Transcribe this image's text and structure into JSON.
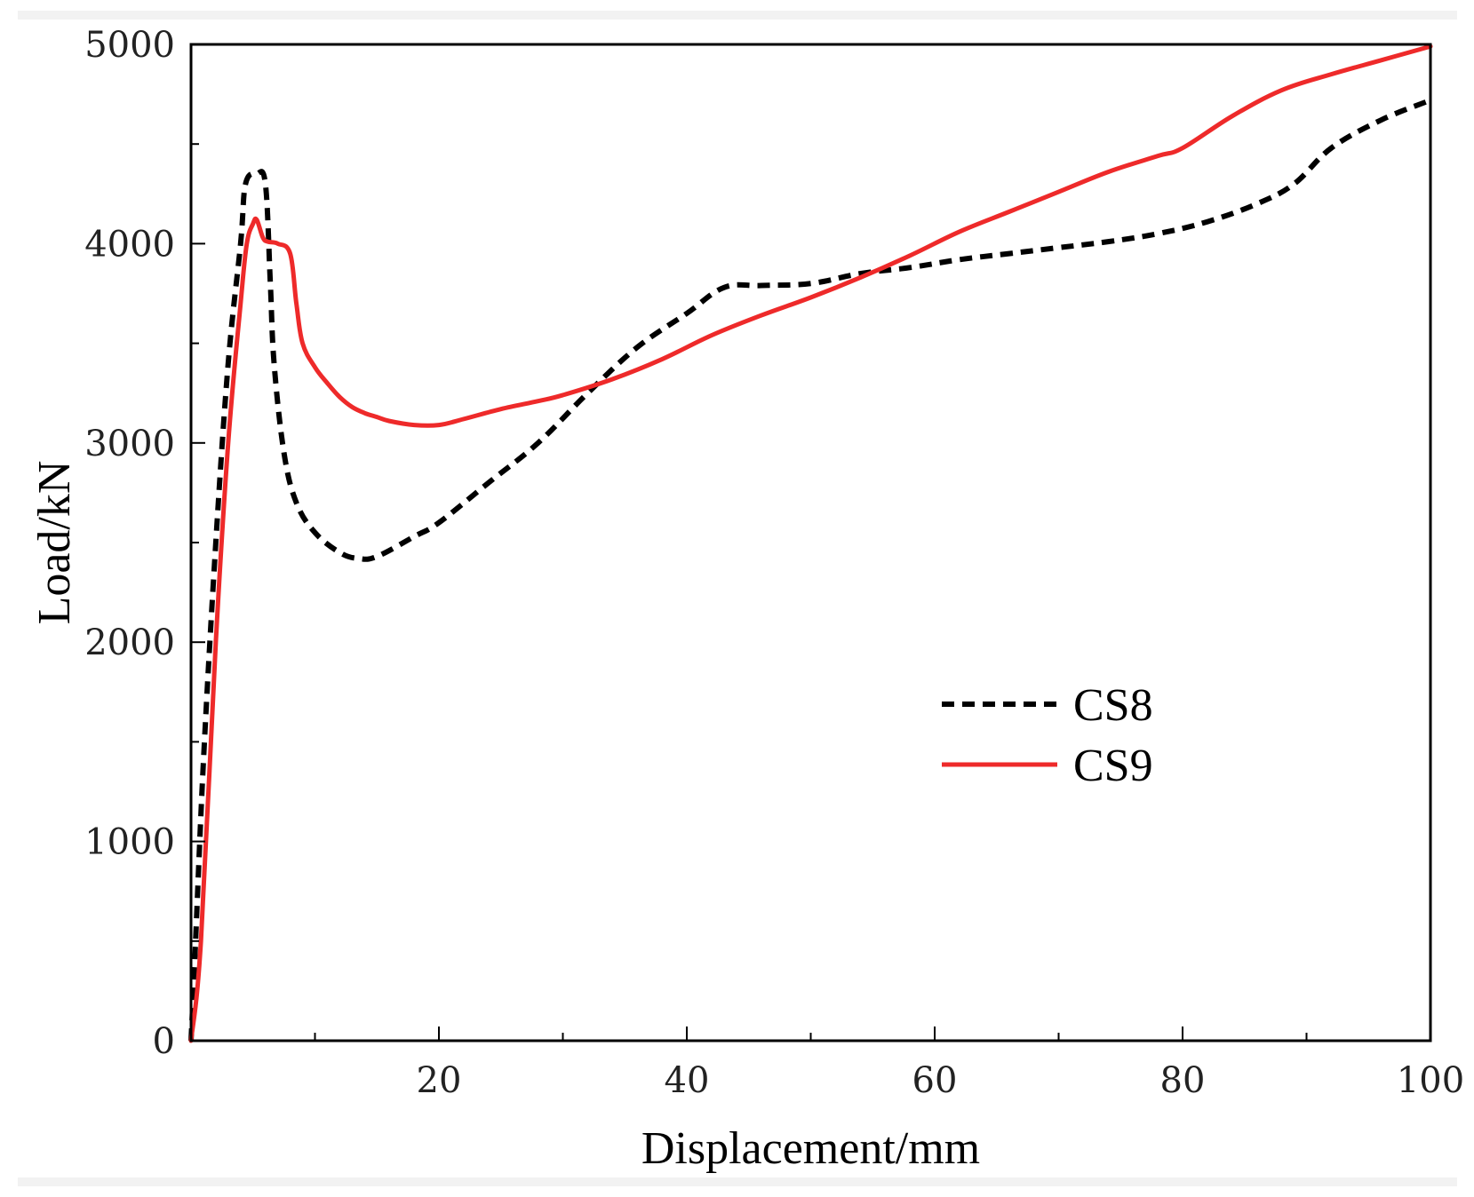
{
  "chart_data": {
    "type": "line",
    "xlabel": "Displacement/mm",
    "ylabel": "Load/kN",
    "xlim": [
      0,
      100
    ],
    "ylim": [
      0,
      5000
    ],
    "x_ticks": [
      20,
      40,
      60,
      80,
      100
    ],
    "x_minor_ticks": [
      10,
      30,
      50,
      70,
      90
    ],
    "y_ticks": [
      0,
      1000,
      2000,
      3000,
      4000,
      5000
    ],
    "y_minor_ticks": [
      500,
      1500,
      2500,
      3500,
      4500
    ],
    "grid": false,
    "legend_position": "right-middle",
    "series": [
      {
        "name": "CS8",
        "color": "#000000",
        "dash": "dashed",
        "x": [
          0,
          0.3,
          1.0,
          2.0,
          3.0,
          4.0,
          4.4,
          5.3,
          6.0,
          6.4,
          6.7,
          7.5,
          8.5,
          10,
          12,
          13.5,
          15,
          18,
          20,
          24,
          28,
          32,
          36,
          40,
          43,
          46,
          50,
          54,
          58,
          62,
          66,
          70,
          74,
          78,
          82,
          86,
          89,
          92,
          96,
          100
        ],
        "y": [
          0,
          400,
          1400,
          2500,
          3400,
          4000,
          4300,
          4350,
          4300,
          3800,
          3400,
          2950,
          2700,
          2550,
          2450,
          2420,
          2430,
          2530,
          2600,
          2800,
          3000,
          3250,
          3480,
          3650,
          3780,
          3790,
          3800,
          3850,
          3880,
          3920,
          3950,
          3980,
          4010,
          4050,
          4110,
          4200,
          4300,
          4480,
          4620,
          4720
        ]
      },
      {
        "name": "CS9",
        "color": "#ee2a2a",
        "dash": "solid",
        "x": [
          0,
          0.8,
          2.0,
          3.0,
          4.0,
          4.5,
          5.0,
          5.3,
          5.8,
          6.2,
          7.0,
          8.0,
          8.5,
          9.0,
          10,
          11,
          12,
          13,
          14,
          15,
          16,
          18,
          20,
          22,
          25,
          28,
          30,
          34,
          38,
          42,
          46,
          50,
          54,
          58,
          62,
          66,
          70,
          74,
          78,
          80,
          84,
          88,
          92,
          96,
          100
        ],
        "y": [
          0,
          500,
          2000,
          3000,
          3700,
          4000,
          4100,
          4120,
          4030,
          4010,
          4000,
          3950,
          3700,
          3500,
          3380,
          3300,
          3230,
          3180,
          3150,
          3130,
          3110,
          3090,
          3090,
          3120,
          3170,
          3210,
          3240,
          3320,
          3420,
          3540,
          3640,
          3730,
          3830,
          3940,
          4060,
          4160,
          4260,
          4360,
          4440,
          4480,
          4640,
          4770,
          4850,
          4920,
          4990
        ]
      }
    ]
  }
}
